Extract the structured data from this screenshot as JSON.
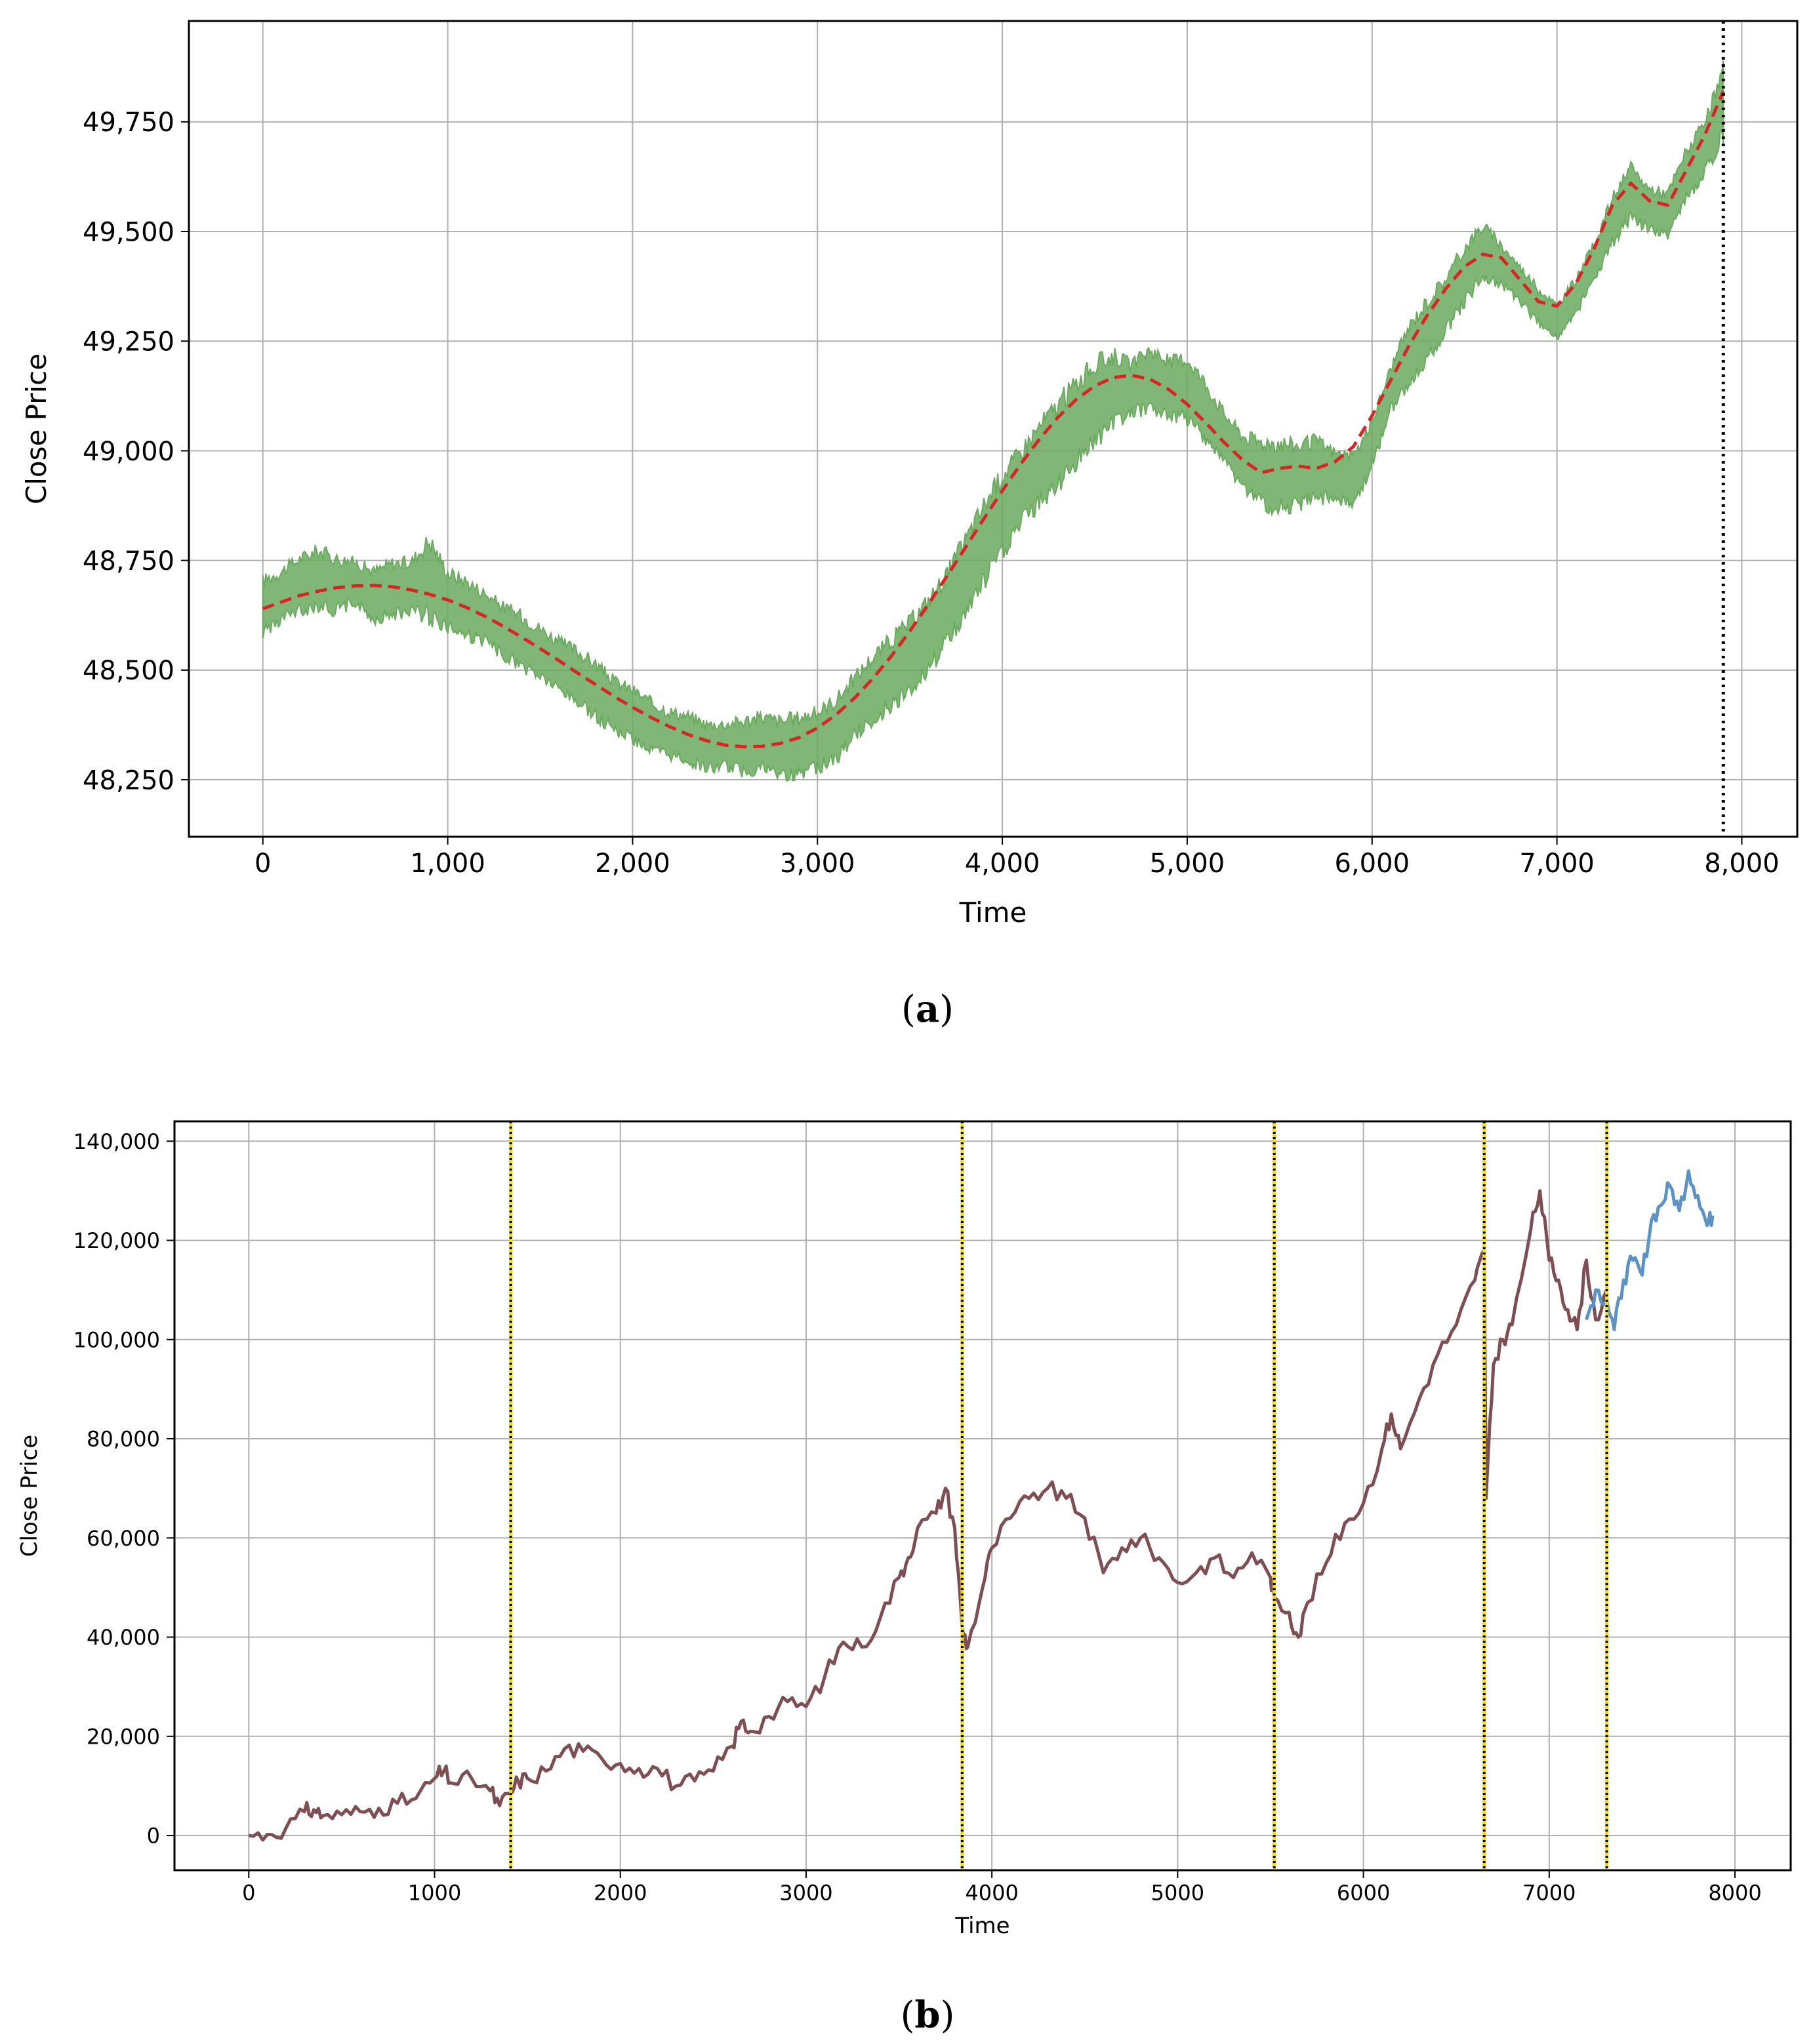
{
  "panels": [
    {
      "label_open": "(",
      "label_letter": "a",
      "label_close": ")"
    },
    {
      "label_open": "(",
      "label_letter": "b",
      "label_close": ")"
    }
  ],
  "colors": {
    "axes": "#000000",
    "grid": "#b0b0b0",
    "panel_a_series": "#6aaa5e",
    "panel_a_trend": "#d62728",
    "panel_a_vline": "#000000",
    "panel_b_series": "#7d4f55",
    "panel_b_forecast": "#5b93c7",
    "panel_b_vline_dots": "#000000",
    "panel_b_vline_base": "#f5e000"
  },
  "chart_data": [
    {
      "type": "line",
      "xlabel": "Time",
      "ylabel": "Close Price",
      "xlim": [
        -400,
        8300
      ],
      "ylim": [
        48120,
        49980
      ],
      "xticks": [
        0,
        1000,
        2000,
        3000,
        4000,
        5000,
        6000,
        7000,
        8000
      ],
      "xtick_labels": [
        "0",
        "1,000",
        "2,000",
        "3,000",
        "4,000",
        "5,000",
        "6,000",
        "7,000",
        "8,000"
      ],
      "yticks": [
        48250,
        48500,
        48750,
        49000,
        49250,
        49500,
        49750
      ],
      "ytick_labels": [
        "48,250",
        "48,500",
        "48,750",
        "49,000",
        "49,250",
        "49,500",
        "49,750"
      ],
      "grid": true,
      "vlines": [
        7900
      ],
      "series": [
        {
          "style": "band",
          "x": [
            0,
            100,
            200,
            300,
            400,
            500,
            600,
            700,
            800,
            900,
            1000,
            1100,
            1200,
            1300,
            1400,
            1500,
            1600,
            1700,
            1800,
            1900,
            2000,
            2100,
            2200,
            2300,
            2400,
            2500,
            2600,
            2700,
            2800,
            2900,
            3000,
            3100,
            3200,
            3300,
            3400,
            3500,
            3600,
            3700,
            3800,
            3900,
            4000,
            4100,
            4200,
            4300,
            4400,
            4500,
            4600,
            4700,
            4800,
            4900,
            5000,
            5100,
            5200,
            5300,
            5400,
            5500,
            5600,
            5700,
            5800,
            5900,
            6000,
            6100,
            6200,
            6300,
            6400,
            6500,
            6600,
            6700,
            6800,
            6900,
            7000,
            7100,
            7200,
            7300,
            7400,
            7500,
            7600,
            7700,
            7800,
            7900
          ],
          "low": [
            48570,
            48600,
            48620,
            48630,
            48620,
            48640,
            48600,
            48610,
            48620,
            48600,
            48580,
            48560,
            48550,
            48520,
            48490,
            48470,
            48440,
            48410,
            48380,
            48350,
            48330,
            48300,
            48290,
            48280,
            48260,
            48270,
            48250,
            48260,
            48240,
            48250,
            48260,
            48280,
            48330,
            48370,
            48400,
            48440,
            48480,
            48540,
            48600,
            48680,
            48740,
            48810,
            48860,
            48900,
            48950,
            49000,
            49040,
            49070,
            49080,
            49070,
            49050,
            49010,
            48960,
            48900,
            48860,
            48850,
            48860,
            48870,
            48880,
            48860,
            48950,
            49080,
            49140,
            49190,
            49260,
            49320,
            49380,
            49370,
            49330,
            49280,
            49250,
            49300,
            49380,
            49460,
            49520,
            49490,
            49480,
            49560,
            49620,
            49700
          ],
          "high": [
            48720,
            48740,
            48770,
            48790,
            48770,
            48760,
            48740,
            48760,
            48760,
            48820,
            48740,
            48720,
            48690,
            48660,
            48640,
            48610,
            48580,
            48560,
            48530,
            48490,
            48470,
            48440,
            48420,
            48410,
            48390,
            48390,
            48400,
            48410,
            48400,
            48410,
            48420,
            48450,
            48500,
            48550,
            48590,
            48630,
            48680,
            48740,
            48820,
            48900,
            48970,
            49020,
            49080,
            49130,
            49180,
            49220,
            49240,
            49210,
            49250,
            49220,
            49230,
            49170,
            49100,
            49050,
            49040,
            49040,
            49030,
            49040,
            49010,
            49000,
            49080,
            49200,
            49300,
            49360,
            49410,
            49480,
            49530,
            49480,
            49430,
            49380,
            49340,
            49400,
            49480,
            49590,
            49660,
            49610,
            49600,
            49700,
            49760,
            49890
          ]
        },
        {
          "style": "dashed",
          "x": [
            0,
            100,
            200,
            300,
            400,
            500,
            600,
            700,
            800,
            900,
            1000,
            1100,
            1200,
            1300,
            1400,
            1500,
            1600,
            1700,
            1800,
            1900,
            2000,
            2100,
            2200,
            2300,
            2400,
            2500,
            2600,
            2700,
            2800,
            2900,
            3000,
            3100,
            3200,
            3300,
            3400,
            3500,
            3600,
            3700,
            3800,
            3900,
            4000,
            4100,
            4200,
            4300,
            4400,
            4500,
            4600,
            4700,
            4800,
            4900,
            5000,
            5100,
            5200,
            5300,
            5400,
            5500,
            5600,
            5700,
            5800,
            5900,
            6000,
            6100,
            6200,
            6300,
            6400,
            6500,
            6600,
            6700,
            6800,
            6900,
            7000,
            7100,
            7200,
            7300,
            7400,
            7500,
            7600,
            7700,
            7800,
            7900
          ],
          "values": [
            48640,
            48655,
            48670,
            48680,
            48688,
            48692,
            48693,
            48690,
            48683,
            48673,
            48660,
            48643,
            48623,
            48600,
            48575,
            48549,
            48522,
            48494,
            48467,
            48440,
            48415,
            48392,
            48371,
            48353,
            48339,
            48329,
            48325,
            48326,
            48333,
            48346,
            48368,
            48398,
            48436,
            48481,
            48532,
            48589,
            48650,
            48714,
            48779,
            48845,
            48909,
            48970,
            49026,
            49076,
            49117,
            49148,
            49167,
            49172,
            49163,
            49140,
            49106,
            49064,
            49019,
            48979,
            48950,
            48960,
            48965,
            48960,
            48975,
            49010,
            49080,
            49160,
            49240,
            49310,
            49370,
            49420,
            49448,
            49440,
            49390,
            49340,
            49330,
            49380,
            49460,
            49560,
            49610,
            49570,
            49560,
            49640,
            49720,
            49820
          ]
        }
      ]
    },
    {
      "type": "line",
      "xlabel": "Time",
      "ylabel": "Close Price",
      "xlim": [
        -400,
        8300
      ],
      "ylim": [
        -7000,
        144000
      ],
      "xticks": [
        0,
        1000,
        2000,
        3000,
        4000,
        5000,
        6000,
        7000,
        8000
      ],
      "xtick_labels": [
        "0",
        "1000",
        "2000",
        "3000",
        "4000",
        "5000",
        "6000",
        "7000",
        "8000"
      ],
      "yticks": [
        0,
        20000,
        40000,
        60000,
        80000,
        100000,
        120000,
        140000
      ],
      "ytick_labels": [
        "0",
        "20,000",
        "40,000",
        "60,000",
        "80,000",
        "100,000",
        "120,000",
        "140,000"
      ],
      "grid": true,
      "vlines": [
        1410,
        3840,
        5520,
        6650,
        7310
      ],
      "series": [
        {
          "style": "solid",
          "role": "history",
          "x": [
            0,
            100,
            200,
            300,
            350,
            400,
            500,
            600,
            700,
            800,
            900,
            1000,
            1050,
            1100,
            1200,
            1300,
            1350,
            1410,
            1450,
            1500,
            1600,
            1700,
            1800,
            1900,
            2000,
            2100,
            2200,
            2300,
            2400,
            2500,
            2600,
            2650,
            2700,
            2800,
            2900,
            3000,
            3100,
            3200,
            3300,
            3400,
            3500,
            3550,
            3600,
            3700,
            3750,
            3800,
            3840,
            3870,
            3950,
            4000,
            4100,
            4200,
            4300,
            4400,
            4500,
            4600,
            4700,
            4800,
            4900,
            5000,
            5100,
            5200,
            5300,
            5400,
            5500,
            5520,
            5600,
            5650,
            5700,
            5800,
            5900,
            6000,
            6100,
            6150,
            6200,
            6300,
            6400,
            6500,
            6600,
            6650,
            6660,
            6700,
            6750,
            6800,
            6900,
            6950,
            7000,
            7050,
            7100,
            7150,
            7200,
            7250,
            7310
          ],
          "values": [
            0,
            200,
            1500,
            4800,
            5200,
            4000,
            4200,
            4800,
            5500,
            6500,
            7500,
            11500,
            13000,
            10500,
            11500,
            9000,
            6000,
            8500,
            11000,
            11500,
            13000,
            17500,
            17000,
            15500,
            14500,
            13500,
            13500,
            10000,
            11000,
            13000,
            18000,
            23000,
            21000,
            24000,
            27000,
            26000,
            32000,
            39000,
            38000,
            44000,
            52000,
            56000,
            62000,
            65000,
            70000,
            62000,
            42000,
            38000,
            50000,
            58000,
            64000,
            68000,
            70000,
            68000,
            64000,
            53000,
            58000,
            60000,
            56000,
            51000,
            53000,
            56000,
            52000,
            57000,
            52000,
            48000,
            45000,
            40000,
            47000,
            55000,
            63000,
            67000,
            78000,
            85000,
            78000,
            88000,
            97000,
            103000,
            112000,
            118000,
            68000,
            95000,
            100000,
            103000,
            122000,
            130000,
            116000,
            112000,
            106000,
            102000,
            116000,
            104000,
            110000
          ]
        },
        {
          "style": "solid",
          "role": "forecast",
          "x": [
            7200,
            7250,
            7310,
            7350,
            7400,
            7450,
            7500,
            7550,
            7600,
            7650,
            7700,
            7750,
            7800,
            7850,
            7880
          ],
          "values": [
            104000,
            110000,
            108000,
            102000,
            112000,
            116000,
            113000,
            124000,
            127000,
            131000,
            126000,
            134000,
            129000,
            123000,
            125000
          ]
        }
      ]
    }
  ]
}
